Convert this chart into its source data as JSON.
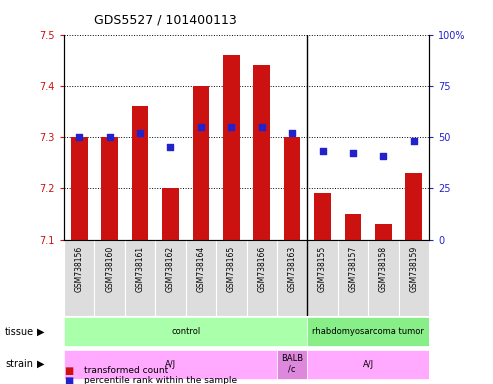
{
  "title": "GDS5527 / 101400113",
  "samples": [
    "GSM738156",
    "GSM738160",
    "GSM738161",
    "GSM738162",
    "GSM738164",
    "GSM738165",
    "GSM738166",
    "GSM738163",
    "GSM738155",
    "GSM738157",
    "GSM738158",
    "GSM738159"
  ],
  "bar_values": [
    7.3,
    7.3,
    7.36,
    7.2,
    7.4,
    7.46,
    7.44,
    7.3,
    7.19,
    7.15,
    7.13,
    7.23
  ],
  "bar_base": 7.1,
  "percentile_values": [
    50,
    50,
    52,
    45,
    55,
    55,
    55,
    52,
    43,
    42,
    41,
    48
  ],
  "ylim_left": [
    7.1,
    7.5
  ],
  "ylim_right": [
    0,
    100
  ],
  "yticks_left": [
    7.1,
    7.2,
    7.3,
    7.4,
    7.5
  ],
  "yticks_right": [
    0,
    25,
    50,
    75,
    100
  ],
  "ytick_labels_right": [
    "0",
    "25",
    "50",
    "75",
    "100%"
  ],
  "bar_color": "#cc1111",
  "dot_color": "#2222cc",
  "tissue_groups": [
    {
      "text": "control",
      "start": 0,
      "end": 8,
      "color": "#aaffaa"
    },
    {
      "text": "rhabdomyosarcoma tumor",
      "start": 8,
      "end": 12,
      "color": "#88ee88"
    }
  ],
  "strain_groups": [
    {
      "text": "A/J",
      "start": 0,
      "end": 7,
      "color": "#ffaaff"
    },
    {
      "text": "BALB\n/c",
      "start": 7,
      "end": 8,
      "color": "#dd88dd"
    },
    {
      "text": "A/J",
      "start": 8,
      "end": 12,
      "color": "#ffaaff"
    }
  ],
  "tick_label_color_left": "#cc1111",
  "tick_label_color_right": "#2222cc",
  "sample_box_color": "#dddddd"
}
